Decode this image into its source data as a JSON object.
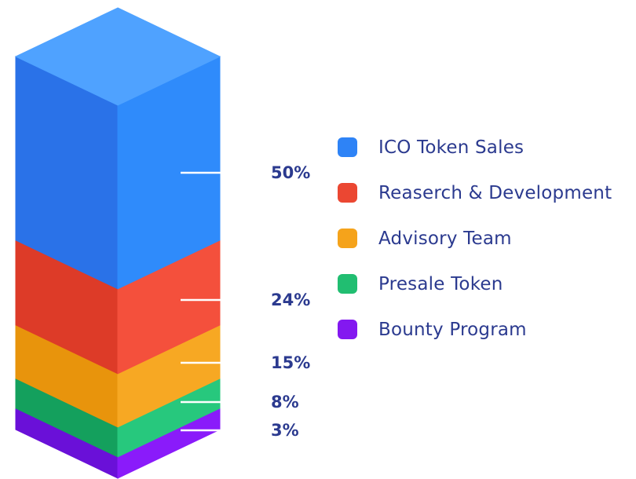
{
  "chart_data": {
    "type": "bar",
    "variant": "isometric-stacked-column",
    "title": "",
    "total": 100,
    "legend_position": "right",
    "label_color": "#2B3A8F",
    "leader_line_color": "#FFFFFF",
    "series": [
      {
        "label": "ICO Token Sales",
        "value": 50,
        "percent_label": "50%",
        "colors": {
          "top": "#4FA2FF",
          "left": "#2A72E8",
          "right": "#2F8BFB",
          "legend": "#2E83F6"
        }
      },
      {
        "label": "Reaserch & Development",
        "value": 24,
        "percent_label": "24%",
        "colors": {
          "left": "#DD3B28",
          "right": "#F4503C",
          "legend": "#EB4732"
        }
      },
      {
        "label": "Advisory Team",
        "value": 15,
        "percent_label": "15%",
        "colors": {
          "left": "#E8940C",
          "right": "#F7A823",
          "legend": "#F5A31B"
        }
      },
      {
        "label": "Presale Token",
        "value": 8,
        "percent_label": "8%",
        "colors": {
          "left": "#14A05D",
          "right": "#27C87D",
          "legend": "#21BE71"
        }
      },
      {
        "label": "Bounty Program",
        "value": 3,
        "percent_label": "3%",
        "colors": {
          "left": "#6A10D8",
          "right": "#8A1BFA",
          "legend": "#8318F0"
        }
      }
    ]
  }
}
